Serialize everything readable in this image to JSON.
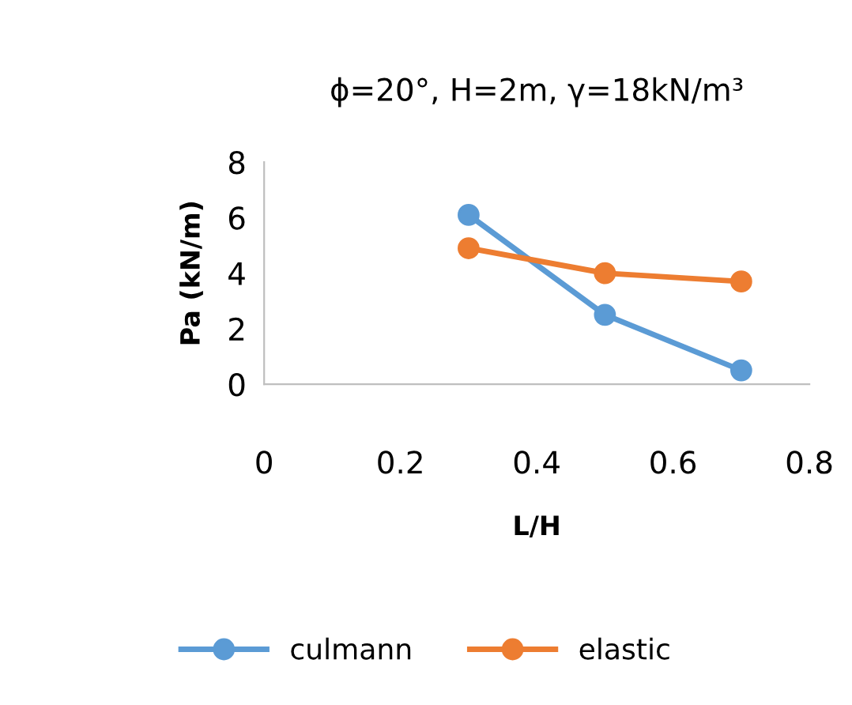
{
  "chart_data": {
    "type": "line",
    "title": "ϕ=20°, H=2m, γ=18kN/m³",
    "xlabel": "L/H",
    "ylabel": "Pa (kN/m)",
    "x": [
      0.3,
      0.5,
      0.7
    ],
    "series": [
      {
        "name": "culmann",
        "color": "#5b9bd5",
        "values": [
          6.1,
          2.5,
          0.5
        ]
      },
      {
        "name": "elastic",
        "color": "#ed7d31",
        "values": [
          4.9,
          4.0,
          3.7
        ]
      }
    ],
    "xlim": [
      0,
      0.8
    ],
    "xticks": [
      0,
      0.2,
      0.4,
      0.6,
      0.8
    ],
    "ylim": [
      0,
      8
    ],
    "yticks": [
      0,
      2,
      4,
      6,
      8
    ],
    "grid": false,
    "legend": "bottom",
    "marker": "circle",
    "line_style": "solid"
  }
}
